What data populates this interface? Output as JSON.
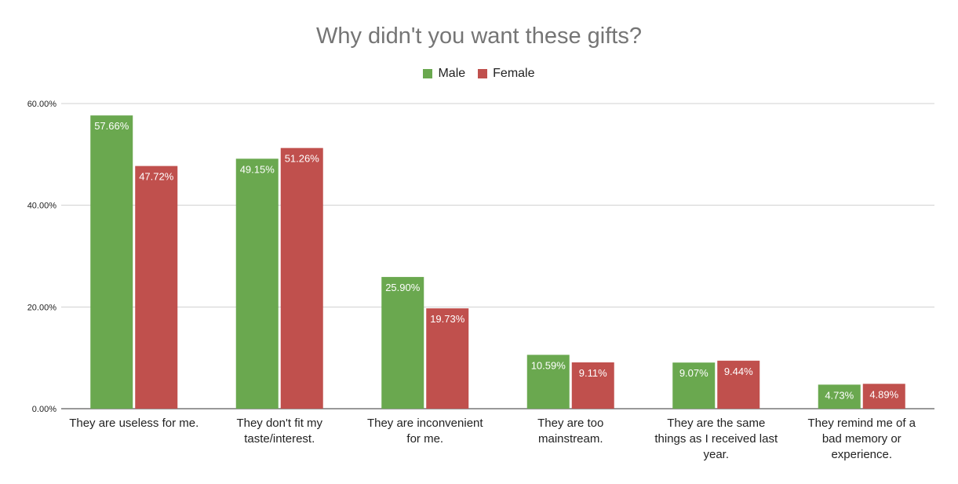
{
  "chart_data": {
    "type": "bar",
    "title": "Why didn't you want these gifts?",
    "categories": [
      [
        "They are useless for me."
      ],
      [
        "They don't fit my",
        "taste/interest."
      ],
      [
        "They are inconvenient",
        "for me."
      ],
      [
        "They are too",
        "mainstream."
      ],
      [
        "They are the same",
        "things as I received last",
        "year."
      ],
      [
        "They remind me of a",
        "bad memory or",
        "experience."
      ]
    ],
    "series": [
      {
        "name": "Male",
        "color": "#6aa84f",
        "values": [
          57.66,
          49.15,
          25.9,
          10.59,
          9.07,
          4.73
        ],
        "labels": [
          "57.66%",
          "49.15%",
          "25.90%",
          "10.59%",
          "9.07%",
          "4.73%"
        ]
      },
      {
        "name": "Female",
        "color": "#c0504d",
        "values": [
          47.72,
          51.26,
          19.73,
          9.11,
          9.44,
          4.89
        ],
        "labels": [
          "47.72%",
          "51.26%",
          "19.73%",
          "9.11%",
          "9.44%",
          "4.89%"
        ]
      }
    ],
    "ylim": [
      0,
      60
    ],
    "yticks": [
      0,
      20,
      40,
      60
    ],
    "ytick_labels": [
      "0.00%",
      "20.00%",
      "40.00%",
      "60.00%"
    ],
    "legend_position": "top",
    "grid": true
  }
}
